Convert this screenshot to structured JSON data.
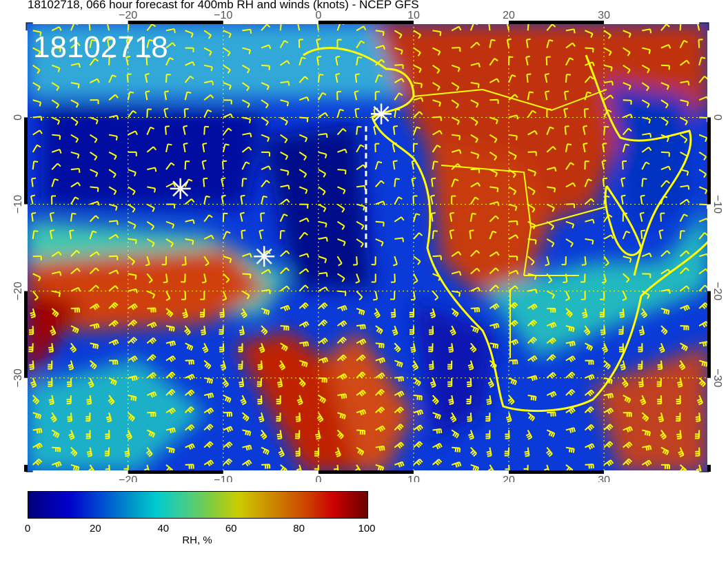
{
  "title": "18102718, 066 hour forecast for 400mb RH and winds (knots) - NCEP GFS",
  "stamp": "18102718",
  "map": {
    "lon_range": [
      -30.7,
      41
    ],
    "lat_range": [
      -40.8,
      10.9
    ],
    "lon_ticks": [
      -20,
      -10,
      0,
      10,
      20,
      30
    ],
    "lat_ticks": [
      0,
      -10,
      -20,
      -30
    ],
    "lon_tick_labels": [
      "−20",
      "−10",
      "0",
      "10",
      "20",
      "30"
    ],
    "lat_tick_labels": [
      "0",
      "−10",
      "−20",
      "−30"
    ],
    "grid_color": "#ffff00",
    "coastline_color": "#ffff00",
    "barb_color": "#ffff00",
    "markers": [
      {
        "lon": -14.5,
        "lat": -8.2,
        "icon": "asterisk-icon"
      },
      {
        "lon": 6.6,
        "lat": 0.4,
        "icon": "asterisk-icon"
      },
      {
        "lon": -5.7,
        "lat": -16
      },
      {
        "icon": "asterisk-icon"
      }
    ],
    "dashed_line": {
      "lon": 5,
      "lat_from": -1,
      "lat_to": -15
    }
  },
  "colorbar": {
    "label": "RH, %",
    "ticks": [
      "0",
      "20",
      "40",
      "60",
      "80",
      "100"
    ],
    "range": [
      0,
      100
    ],
    "colors": [
      "#00007a",
      "#0000cc",
      "#00a0c8",
      "#00cccc",
      "#80cc40",
      "#cccc00",
      "#cc8800",
      "#cc0000",
      "#6a0000"
    ]
  }
}
